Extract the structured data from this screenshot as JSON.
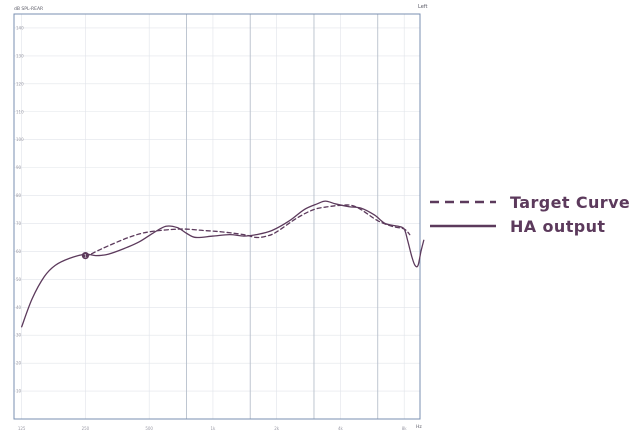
{
  "colors": {
    "series": "#5c3a5c",
    "frame": "#7a8fb0",
    "grid": "#e1e4ea",
    "major_grid": "#b8c0cc",
    "tick_label": "#9a9aa6"
  },
  "chart_data": {
    "type": "line",
    "ylabel": "dB SPL-REAR",
    "xlabel": "Hz",
    "side_label": "Left",
    "xscale": "log",
    "xlim": [
      115,
      9500
    ],
    "ylim": [
      0,
      145
    ],
    "xticks": [
      {
        "value": 125,
        "label": "125"
      },
      {
        "value": 250,
        "label": "250"
      },
      {
        "value": 500,
        "label": "500"
      },
      {
        "value": 1000,
        "label": "1k"
      },
      {
        "value": 2000,
        "label": "2k"
      },
      {
        "value": 4000,
        "label": "4k"
      },
      {
        "value": 8000,
        "label": "8k"
      }
    ],
    "yticks": [
      {
        "value": 140,
        "label": "140"
      },
      {
        "value": 130,
        "label": "130"
      },
      {
        "value": 120,
        "label": "120"
      },
      {
        "value": 110,
        "label": "110"
      },
      {
        "value": 100,
        "label": "100"
      },
      {
        "value": 90,
        "label": "90"
      },
      {
        "value": 80,
        "label": "80"
      },
      {
        "value": 70,
        "label": "70"
      },
      {
        "value": 60,
        "label": "60"
      },
      {
        "value": 50,
        "label": "50"
      },
      {
        "value": 40,
        "label": "40"
      },
      {
        "value": 30,
        "label": "30"
      },
      {
        "value": 20,
        "label": "20"
      },
      {
        "value": 10,
        "label": "10"
      }
    ],
    "major_x_lines": [
      750,
      1500,
      3000,
      6000
    ],
    "grid": true,
    "legend_position": "right",
    "series": [
      {
        "name": "Target Curve",
        "style": "dashed",
        "points": [
          [
            250,
            58
          ],
          [
            300,
            61
          ],
          [
            400,
            65
          ],
          [
            500,
            67
          ],
          [
            700,
            68
          ],
          [
            900,
            67.5
          ],
          [
            1100,
            67
          ],
          [
            1400,
            66
          ],
          [
            1600,
            65
          ],
          [
            1800,
            65.5
          ],
          [
            2000,
            67
          ],
          [
            2500,
            72
          ],
          [
            3000,
            75
          ],
          [
            3500,
            76
          ],
          [
            4000,
            76.5
          ],
          [
            4500,
            76.5
          ],
          [
            5000,
            75
          ],
          [
            6000,
            71
          ],
          [
            7000,
            69
          ],
          [
            8000,
            68
          ],
          [
            8500,
            66
          ]
        ]
      },
      {
        "name": "HA output",
        "style": "solid",
        "points": [
          [
            125,
            33
          ],
          [
            140,
            43
          ],
          [
            160,
            51
          ],
          [
            180,
            55
          ],
          [
            210,
            57.5
          ],
          [
            250,
            59
          ],
          [
            280,
            58.5
          ],
          [
            320,
            59
          ],
          [
            380,
            61
          ],
          [
            450,
            63.5
          ],
          [
            520,
            66.5
          ],
          [
            600,
            69
          ],
          [
            680,
            68.5
          ],
          [
            750,
            66.5
          ],
          [
            830,
            65
          ],
          [
            1000,
            65.5
          ],
          [
            1200,
            66
          ],
          [
            1400,
            65.5
          ],
          [
            1600,
            66
          ],
          [
            1900,
            67.5
          ],
          [
            2300,
            71
          ],
          [
            2700,
            75
          ],
          [
            3100,
            77
          ],
          [
            3400,
            78
          ],
          [
            3800,
            77
          ],
          [
            4400,
            76
          ],
          [
            5000,
            75.5
          ],
          [
            5800,
            73
          ],
          [
            6500,
            70
          ],
          [
            7500,
            69
          ],
          [
            8000,
            68
          ],
          [
            8300,
            64
          ],
          [
            8700,
            58
          ],
          [
            9000,
            55
          ],
          [
            9300,
            55
          ],
          [
            9600,
            60
          ],
          [
            9900,
            64
          ]
        ]
      }
    ],
    "marker": {
      "x": 250,
      "y": 58.5,
      "label": "1"
    }
  }
}
